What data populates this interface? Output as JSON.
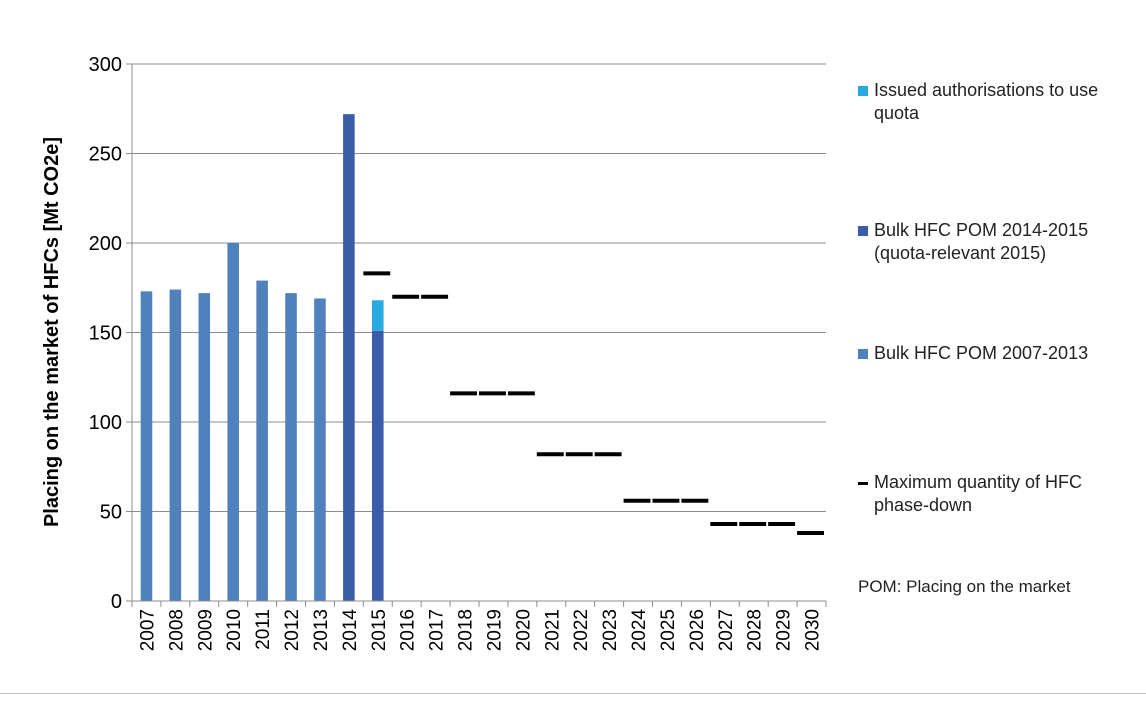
{
  "chart_data": {
    "type": "bar",
    "ylabel": "Placing on the market of HFCs [Mt CO2e]",
    "xlabel": "",
    "ylim": [
      0,
      300
    ],
    "yticks": [
      0,
      50,
      100,
      150,
      200,
      250,
      300
    ],
    "grid": true,
    "legend_position": "right",
    "categories": [
      "2007",
      "2008",
      "2009",
      "2010",
      "2011",
      "2012",
      "2013",
      "2014",
      "2015",
      "2016",
      "2017",
      "2018",
      "2019",
      "2020",
      "2021",
      "2022",
      "2023",
      "2024",
      "2025",
      "2026",
      "2027",
      "2028",
      "2029",
      "2030"
    ],
    "series": [
      {
        "name": "Issued authorisations to use quota",
        "kind": "bar-stacked",
        "color": "#29abe2",
        "values": [
          null,
          null,
          null,
          null,
          null,
          null,
          null,
          null,
          17,
          null,
          null,
          null,
          null,
          null,
          null,
          null,
          null,
          null,
          null,
          null,
          null,
          null,
          null,
          null
        ]
      },
      {
        "name": "Bulk HFC POM 2014-2015 (quota-relevant 2015)",
        "kind": "bar",
        "color": "#3a5da9",
        "values": [
          null,
          null,
          null,
          null,
          null,
          null,
          null,
          272,
          151,
          null,
          null,
          null,
          null,
          null,
          null,
          null,
          null,
          null,
          null,
          null,
          null,
          null,
          null,
          null
        ]
      },
      {
        "name": "Bulk HFC POM 2007-2013",
        "kind": "bar",
        "color": "#4f81bd",
        "values": [
          173,
          174,
          172,
          200,
          179,
          172,
          169,
          null,
          null,
          null,
          null,
          null,
          null,
          null,
          null,
          null,
          null,
          null,
          null,
          null,
          null,
          null,
          null,
          null
        ]
      },
      {
        "name": "Maximum quantity of HFC phase-down",
        "kind": "dash",
        "color": "#000000",
        "values": [
          null,
          null,
          null,
          null,
          null,
          null,
          null,
          null,
          183,
          170,
          170,
          116,
          116,
          116,
          82,
          82,
          82,
          56,
          56,
          56,
          43,
          43,
          43,
          38
        ]
      }
    ],
    "annotations": [
      "POM: Placing on the market"
    ]
  }
}
